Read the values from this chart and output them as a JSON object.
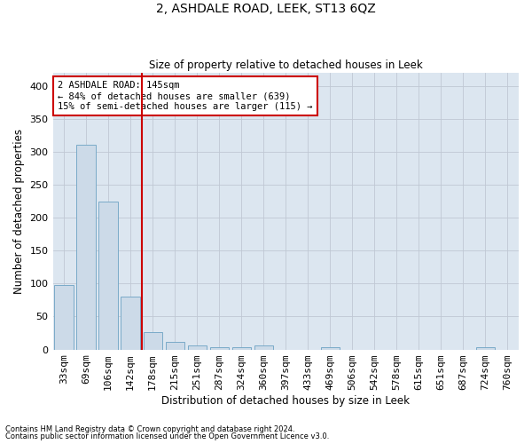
{
  "title": "2, ASHDALE ROAD, LEEK, ST13 6QZ",
  "subtitle": "Size of property relative to detached houses in Leek",
  "xlabel": "Distribution of detached houses by size in Leek",
  "ylabel": "Number of detached properties",
  "categories": [
    "33sqm",
    "69sqm",
    "106sqm",
    "142sqm",
    "178sqm",
    "215sqm",
    "251sqm",
    "287sqm",
    "324sqm",
    "360sqm",
    "397sqm",
    "433sqm",
    "469sqm",
    "506sqm",
    "542sqm",
    "578sqm",
    "615sqm",
    "651sqm",
    "687sqm",
    "724sqm",
    "760sqm"
  ],
  "values": [
    98,
    311,
    224,
    80,
    26,
    12,
    6,
    4,
    4,
    6,
    0,
    0,
    4,
    0,
    0,
    0,
    0,
    0,
    0,
    4,
    0
  ],
  "bar_color": "#ccdae8",
  "bar_edge_color": "#7aaac8",
  "grid_color": "#c0c8d4",
  "bg_color": "#dce6f0",
  "vline_color": "#cc0000",
  "annotation_text": "2 ASHDALE ROAD: 145sqm\n← 84% of detached houses are smaller (639)\n15% of semi-detached houses are larger (115) →",
  "annotation_box_color": "#ffffff",
  "annotation_box_edge_color": "#cc0000",
  "ylim": [
    0,
    420
  ],
  "yticks": [
    0,
    50,
    100,
    150,
    200,
    250,
    300,
    350,
    400
  ],
  "footer_line1": "Contains HM Land Registry data © Crown copyright and database right 2024.",
  "footer_line2": "Contains public sector information licensed under the Open Government Licence v3.0."
}
